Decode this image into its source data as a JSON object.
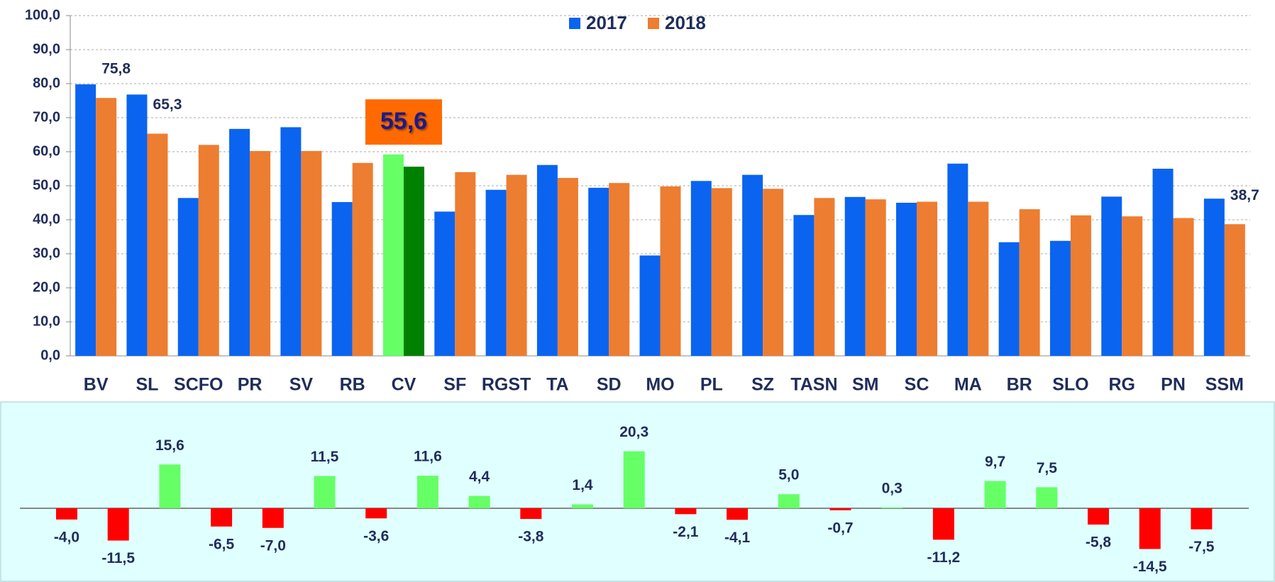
{
  "chart_data": [
    {
      "type": "bar",
      "categories": [
        "BV",
        "SL",
        "SCFO",
        "PR",
        "SV",
        "RB",
        "CV",
        "SF",
        "RGST",
        "TA",
        "SD",
        "MO",
        "PL",
        "SZ",
        "TASN",
        "SM",
        "SC",
        "MA",
        "BR",
        "SLO",
        "RG",
        "PN",
        "SSM"
      ],
      "series": [
        {
          "name": "2017",
          "color": "#0a64f0",
          "highlight_color": "#66ff66",
          "values": [
            79.8,
            76.8,
            46.4,
            66.7,
            67.2,
            45.2,
            59.2,
            42.4,
            48.8,
            56.1,
            49.4,
            29.5,
            51.4,
            53.2,
            41.4,
            46.7,
            45.0,
            56.5,
            33.4,
            33.8,
            46.8,
            55.0,
            46.2
          ]
        },
        {
          "name": "2018",
          "color": "#ed7d31",
          "highlight_color": "#008000",
          "values": [
            75.8,
            65.3,
            62.0,
            60.2,
            60.2,
            56.7,
            55.6,
            54.0,
            53.2,
            52.3,
            50.8,
            49.8,
            49.3,
            49.1,
            46.4,
            46.0,
            45.3,
            45.3,
            43.1,
            41.3,
            41.0,
            40.5,
            38.7
          ],
          "value_labels": [
            "75,8",
            "65,3",
            null,
            null,
            null,
            null,
            "55,6",
            null,
            null,
            null,
            null,
            null,
            null,
            null,
            null,
            null,
            null,
            null,
            null,
            null,
            null,
            null,
            "38,7"
          ]
        }
      ],
      "highlight_category": "CV",
      "highlight_box_color": "#ff6a00",
      "ylim": [
        0,
        100
      ],
      "yticks": [
        {
          "value": 0,
          "label": "0,0"
        },
        {
          "value": 10,
          "label": "10,0"
        },
        {
          "value": 20,
          "label": "20,0"
        },
        {
          "value": 30,
          "label": "30,0"
        },
        {
          "value": 40,
          "label": "40,0"
        },
        {
          "value": 50,
          "label": "50,0"
        },
        {
          "value": 60,
          "label": "60,0"
        },
        {
          "value": 70,
          "label": "70,0"
        },
        {
          "value": 80,
          "label": "80,0"
        },
        {
          "value": 90,
          "label": "90,0"
        },
        {
          "value": 100,
          "label": "100,0"
        }
      ],
      "grid": true,
      "legend": "top"
    },
    {
      "type": "bar",
      "values": [
        -4.0,
        -11.5,
        15.6,
        -6.5,
        -7.0,
        11.5,
        -3.6,
        11.6,
        4.4,
        -3.8,
        1.4,
        20.3,
        -2.1,
        -4.1,
        5.0,
        -0.7,
        0.3,
        -11.2,
        9.7,
        7.5,
        -5.8,
        -14.5,
        -7.5
      ],
      "value_labels": [
        "-4,0",
        "-11,5",
        "15,6",
        "-6,5",
        "-7,0",
        "11,5",
        "-3,6",
        "11,6",
        "4,4",
        "-3,8",
        "1,4",
        "20,3",
        "-2,1",
        "-4,1",
        "5,0",
        "-0,7",
        "0,3",
        "-11,2",
        "9,7",
        "7,5",
        "-5,8",
        "-14,5",
        "-7,5"
      ],
      "positive_color": "#66ff66",
      "negative_color": "#ff0000",
      "background": "#e0ffff"
    }
  ]
}
